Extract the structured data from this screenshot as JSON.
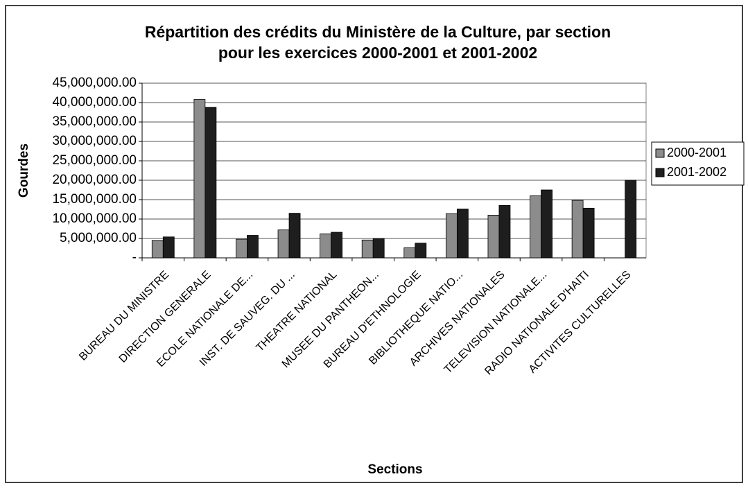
{
  "chart_data": {
    "type": "bar",
    "title_lines": [
      "Répartition des crédits du Ministère de la Culture, par section",
      "pour les exercices 2000-2001 et 2001-2002"
    ],
    "y_label": "Gourdes",
    "x_label": "Sections",
    "categories": [
      "BUREAU DU MINISTRE",
      "DIRECTION GENERALE",
      "ECOLE NATIONALE DE...",
      "INST. DE SAUVEG. DU ...",
      "THEATRE NATIONAL",
      "MUSEE DU PANTHEON...",
      "BUREAU D'ETHNOLOGIE",
      "BIBLIOTHEQUE NATIO...",
      "ARCHIVES NATIONALES",
      "TELEVISION NATIONALE...",
      "RADIO NATIONALE D'HAITI",
      "ACTIVITES CULTURELLES"
    ],
    "series": [
      {
        "name": "2000-2001",
        "color": "#8c8c8c",
        "values": [
          4500000,
          40800000,
          4800000,
          7200000,
          6200000,
          4600000,
          2600000,
          11400000,
          11000000,
          16000000,
          14800000,
          null
        ]
      },
      {
        "name": "2001-2002",
        "color": "#1e1e1e",
        "values": [
          5400000,
          38800000,
          5800000,
          11500000,
          6600000,
          5000000,
          3800000,
          12600000,
          13500000,
          17500000,
          12800000,
          20000000
        ]
      }
    ],
    "ylim": [
      0,
      45000000
    ],
    "yticks": [
      {
        "value": 0,
        "label": "-"
      },
      {
        "value": 5000000,
        "label": "5,000,000.00"
      },
      {
        "value": 10000000,
        "label": "10,000,000.00"
      },
      {
        "value": 15000000,
        "label": "15,000,000.00"
      },
      {
        "value": 20000000,
        "label": "20,000,000.00"
      },
      {
        "value": 25000000,
        "label": "25,000,000.00"
      },
      {
        "value": 30000000,
        "label": "30,000,000.00"
      },
      {
        "value": 35000000,
        "label": "35,000,000.00"
      },
      {
        "value": 40000000,
        "label": "40,000,000.00"
      },
      {
        "value": 45000000,
        "label": "45,000,000.00"
      }
    ],
    "grid": true,
    "legend": "right"
  }
}
